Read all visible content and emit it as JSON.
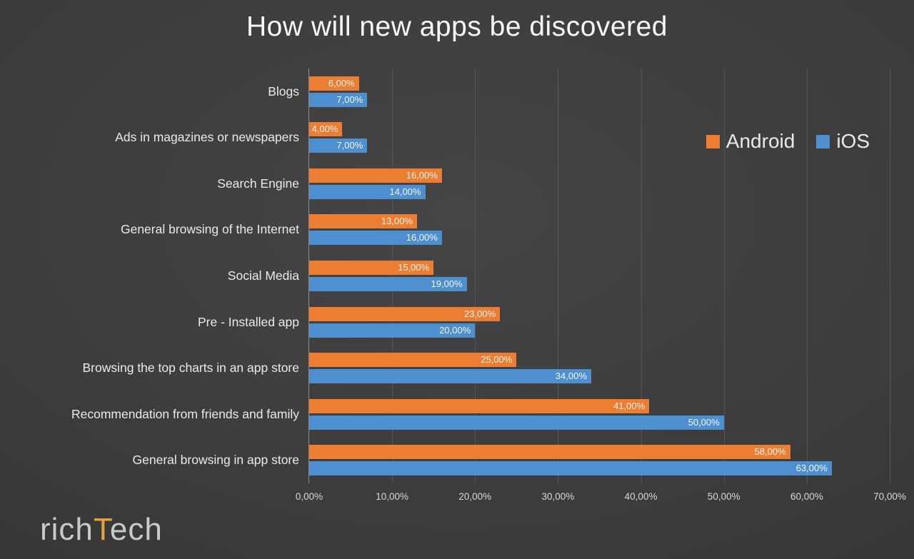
{
  "title": "How will new apps be discovered",
  "logo": {
    "part1": "rich",
    "accent": "T",
    "part2": "ech"
  },
  "chart_data": {
    "type": "bar",
    "orientation": "horizontal",
    "title": "How will new apps be discovered",
    "categories": [
      "Blogs",
      "Ads in magazines or newspapers",
      "Search Engine",
      "General browsing of the Internet",
      "Social Media",
      "Pre - Installed app",
      "Browsing the top charts in an app store",
      "Recommendation from friends and family",
      "General browsing in app store"
    ],
    "series": [
      {
        "name": "Android",
        "color": "#ED7D31",
        "values": [
          6,
          4,
          16,
          13,
          15,
          23,
          25,
          41,
          58
        ],
        "labels": [
          "6,00%",
          "4,00%",
          "16,00%",
          "13,00%",
          "15,00%",
          "23,00%",
          "25,00%",
          "41,00%",
          "58,00%"
        ]
      },
      {
        "name": "iOS",
        "color": "#4E8FD0",
        "values": [
          7,
          7,
          14,
          16,
          19,
          20,
          34,
          50,
          63
        ],
        "labels": [
          "7,00%",
          "7,00%",
          "14,00%",
          "16,00%",
          "19,00%",
          "20,00%",
          "34,00%",
          "50,00%",
          "63,00%"
        ]
      }
    ],
    "xlim": [
      0,
      70
    ],
    "x_ticks": [
      {
        "value": 0,
        "label": "0,00%"
      },
      {
        "value": 10,
        "label": "10,00%"
      },
      {
        "value": 20,
        "label": "20,00%"
      },
      {
        "value": 30,
        "label": "30,00%"
      },
      {
        "value": 40,
        "label": "40,00%"
      },
      {
        "value": 50,
        "label": "50,00%"
      },
      {
        "value": 60,
        "label": "60,00%"
      },
      {
        "value": 70,
        "label": "70,00%"
      }
    ],
    "grid": true,
    "legend_position": "upper-right"
  }
}
